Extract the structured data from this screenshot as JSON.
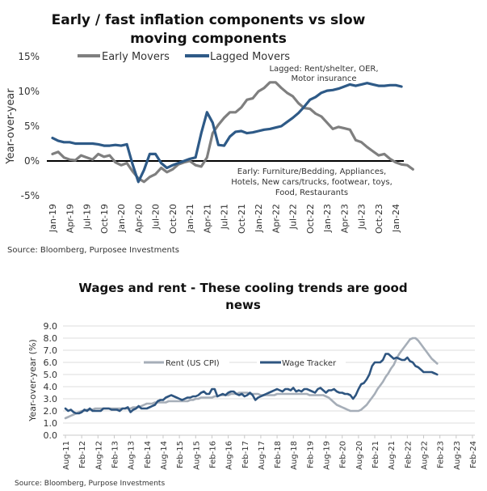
{
  "chart_data": [
    {
      "type": "line",
      "title_lines": [
        "Early / fast inflation components vs slow",
        "moving components"
      ],
      "xlabel": "",
      "ylabel": "Year-over-year",
      "ylim": [
        -5,
        15
      ],
      "yticks": [
        "15%",
        "10%",
        "5%",
        "0%",
        "-5%"
      ],
      "ytick_values": [
        15,
        10,
        5,
        0,
        -5
      ],
      "x_tick_labels": [
        "Jan-19",
        "Apr-19",
        "Jul-19",
        "Oct-19",
        "Jan-20",
        "Apr-20",
        "Jul-20",
        "Oct-20",
        "Jan-21",
        "Apr-21",
        "Jul-21",
        "Oct-21",
        "Jan-22",
        "Apr-22",
        "Jul-22",
        "Oct-22",
        "Jan-23",
        "Apr-23",
        "Jul-23",
        "Oct-23",
        "Jan-24"
      ],
      "x_start": "Jan-19",
      "frequency": "monthly",
      "grid": false,
      "zero_line": true,
      "legend": {
        "position": "top-left",
        "entries": [
          "Early Movers",
          "Lagged Movers"
        ]
      },
      "series": [
        {
          "name": "Early Movers",
          "color": "#7f7f7f",
          "values": [
            1.0,
            1.3,
            0.5,
            0.2,
            0.1,
            0.8,
            0.5,
            0.2,
            1.0,
            0.6,
            0.8,
            -0.2,
            -0.6,
            -0.3,
            -1.5,
            -2.5,
            -3.0,
            -2.3,
            -1.9,
            -1.0,
            -1.6,
            -1.2,
            -0.5,
            -0.2,
            0.0,
            -0.6,
            -0.8,
            0.5,
            4.0,
            5.2,
            6.2,
            7.0,
            7.0,
            7.7,
            8.8,
            9.0,
            10.0,
            10.5,
            11.3,
            11.3,
            10.5,
            9.8,
            9.3,
            8.3,
            7.6,
            7.5,
            6.8,
            6.4,
            5.5,
            4.6,
            4.9,
            4.7,
            4.5,
            3.0,
            2.7,
            2.0,
            1.4,
            0.8,
            1.0,
            0.3,
            -0.2,
            -0.5,
            -0.6,
            -1.2
          ]
        },
        {
          "name": "Lagged Movers",
          "color": "#2e5a87",
          "values": [
            3.3,
            2.9,
            2.7,
            2.7,
            2.5,
            2.5,
            2.5,
            2.5,
            2.4,
            2.2,
            2.2,
            2.3,
            2.2,
            2.4,
            -0.5,
            -3.0,
            -1.3,
            1.0,
            1.0,
            -0.3,
            -1.0,
            -0.6,
            -0.3,
            0.0,
            0.3,
            0.5,
            4.0,
            7.0,
            5.5,
            2.3,
            2.2,
            3.5,
            4.2,
            4.3,
            4.0,
            4.1,
            4.3,
            4.5,
            4.6,
            4.8,
            5.0,
            5.6,
            6.2,
            6.9,
            7.8,
            8.8,
            9.2,
            9.8,
            10.1,
            10.2,
            10.4,
            10.7,
            11.0,
            10.8,
            11.0,
            11.2,
            11.0,
            10.8,
            10.8,
            10.9,
            10.9,
            10.7
          ]
        }
      ],
      "annotations": [
        {
          "name": "lagged-note",
          "lines": [
            "Lagged: Rent/shelter, OER,",
            "Motor insurance"
          ]
        },
        {
          "name": "early-note",
          "lines": [
            "Early: Furniture/Bedding, Appliances,",
            "Hotels, New cars/trucks, footwear, toys,",
            "Food, Restaurants"
          ]
        }
      ],
      "source": "Source: Bloomberg, Purposee Investments"
    },
    {
      "type": "line",
      "title_lines": [
        "Wages and rent - These cooling trends are good",
        "news"
      ],
      "xlabel": "",
      "ylabel": "Year-over-year (%)",
      "ylim": [
        0,
        9
      ],
      "yticks": [
        "9.0",
        "8.0",
        "7.0",
        "6.0",
        "5.0",
        "4.0",
        "3.0",
        "2.0",
        "1.0",
        "0.0"
      ],
      "ytick_values": [
        9,
        8,
        7,
        6,
        5,
        4,
        3,
        2,
        1,
        0
      ],
      "x_tick_labels": [
        "Aug-11",
        "Feb-12",
        "Aug-12",
        "Feb-13",
        "Aug-13",
        "Feb-14",
        "Aug-14",
        "Feb-15",
        "Aug-15",
        "Feb-16",
        "Aug-16",
        "Feb-17",
        "Aug-17",
        "Feb-18",
        "Aug-18",
        "Feb-19",
        "Aug-19",
        "Feb-20",
        "Aug-20",
        "Feb-21",
        "Aug-21",
        "Feb-22",
        "Aug-22",
        "Feb-23",
        "Aug-23",
        "Feb-24"
      ],
      "x_start": "Aug-11",
      "frequency": "monthly",
      "grid": true,
      "legend": {
        "position": "center-left",
        "entries": [
          "Rent (US CPI)",
          "Wage Tracker"
        ]
      },
      "series": [
        {
          "name": "Rent (US CPI)",
          "color": "#a6aeb8",
          "values": [
            1.4,
            1.5,
            1.6,
            1.7,
            1.8,
            1.9,
            2.0,
            2.0,
            2.1,
            2.1,
            2.1,
            2.2,
            2.2,
            2.2,
            2.2,
            2.2,
            2.2,
            2.2,
            2.2,
            2.2,
            2.2,
            2.2,
            2.2,
            2.2,
            2.2,
            2.3,
            2.3,
            2.3,
            2.4,
            2.5,
            2.6,
            2.6,
            2.6,
            2.7,
            2.7,
            2.7,
            2.7,
            2.7,
            2.8,
            2.8,
            2.8,
            2.8,
            2.8,
            2.8,
            2.8,
            2.8,
            2.9,
            2.9,
            3.0,
            3.0,
            3.1,
            3.1,
            3.1,
            3.1,
            3.1,
            3.2,
            3.2,
            3.3,
            3.3,
            3.3,
            3.3,
            3.4,
            3.4,
            3.4,
            3.5,
            3.5,
            3.5,
            3.5,
            3.4,
            3.4,
            3.4,
            3.4,
            3.3,
            3.3,
            3.3,
            3.3,
            3.3,
            3.3,
            3.4,
            3.4,
            3.4,
            3.4,
            3.4,
            3.4,
            3.4,
            3.4,
            3.4,
            3.4,
            3.4,
            3.4,
            3.3,
            3.3,
            3.3,
            3.3,
            3.3,
            3.3,
            3.2,
            3.1,
            2.9,
            2.7,
            2.5,
            2.4,
            2.3,
            2.2,
            2.1,
            2.0,
            2.0,
            2.0,
            2.0,
            2.1,
            2.3,
            2.5,
            2.8,
            3.1,
            3.4,
            3.8,
            4.1,
            4.4,
            4.8,
            5.1,
            5.5,
            5.8,
            6.3,
            6.7,
            7.0,
            7.3,
            7.6,
            7.9,
            8.0,
            8.0,
            7.8,
            7.5,
            7.2,
            6.9,
            6.6,
            6.3,
            6.1,
            5.9
          ]
        },
        {
          "name": "Wage Tracker",
          "color": "#2e5580",
          "values": [
            2.2,
            2.0,
            2.1,
            1.9,
            1.8,
            1.8,
            1.9,
            2.1,
            2.0,
            2.2,
            2.0,
            2.0,
            2.0,
            2.0,
            2.2,
            2.2,
            2.2,
            2.1,
            2.1,
            2.1,
            2.0,
            2.2,
            2.2,
            2.3,
            1.9,
            2.1,
            2.2,
            2.4,
            2.2,
            2.2,
            2.2,
            2.3,
            2.4,
            2.5,
            2.8,
            2.9,
            2.9,
            3.1,
            3.2,
            3.3,
            3.2,
            3.1,
            3.0,
            2.9,
            3.0,
            3.1,
            3.1,
            3.2,
            3.2,
            3.3,
            3.5,
            3.6,
            3.4,
            3.4,
            3.8,
            3.8,
            3.2,
            3.3,
            3.4,
            3.3,
            3.5,
            3.6,
            3.6,
            3.4,
            3.3,
            3.4,
            3.2,
            3.3,
            3.5,
            3.3,
            2.9,
            3.1,
            3.2,
            3.3,
            3.4,
            3.5,
            3.6,
            3.7,
            3.8,
            3.7,
            3.6,
            3.8,
            3.8,
            3.7,
            3.9,
            3.6,
            3.7,
            3.6,
            3.8,
            3.8,
            3.7,
            3.6,
            3.5,
            3.8,
            3.9,
            3.7,
            3.5,
            3.7,
            3.7,
            3.8,
            3.6,
            3.5,
            3.5,
            3.4,
            3.4,
            3.3,
            3.0,
            3.3,
            3.8,
            4.2,
            4.3,
            4.6,
            5.0,
            5.7,
            6.0,
            6.0,
            6.0,
            6.2,
            6.7,
            6.7,
            6.5,
            6.3,
            6.4,
            6.3,
            6.2,
            6.2,
            6.4,
            6.1,
            6.0,
            5.7,
            5.6,
            5.4,
            5.2,
            5.2,
            5.2,
            5.2,
            5.1,
            5.0
          ]
        }
      ],
      "source": "Source: Bloomberg, Purpose Investments"
    }
  ]
}
